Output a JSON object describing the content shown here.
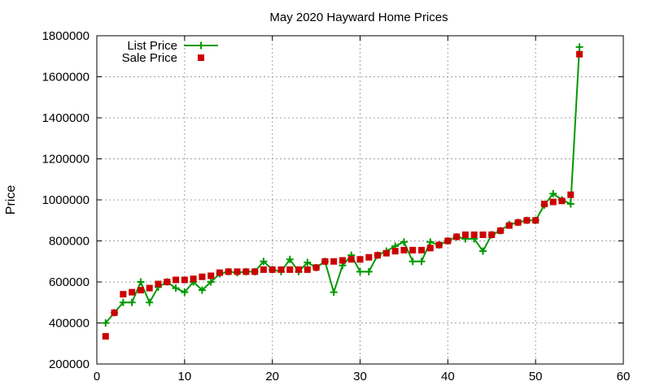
{
  "chart_data": {
    "type": "line",
    "title": "May 2020 Hayward Home Prices",
    "xlabel": "",
    "ylabel": "Price",
    "xlim": [
      0,
      60
    ],
    "ylim": [
      200000,
      1800000
    ],
    "x_ticks": [
      0,
      10,
      20,
      30,
      40,
      50,
      60
    ],
    "y_ticks": [
      200000,
      400000,
      600000,
      800000,
      1000000,
      1200000,
      1400000,
      1600000,
      1800000
    ],
    "grid": true,
    "legend_position": "top-left",
    "series": [
      {
        "name": "List Price",
        "style": "line-with-plus-markers",
        "color": "#009900",
        "x": [
          1,
          2,
          3,
          4,
          5,
          6,
          7,
          8,
          9,
          10,
          11,
          12,
          13,
          14,
          15,
          16,
          17,
          18,
          19,
          20,
          21,
          22,
          23,
          24,
          25,
          26,
          27,
          28,
          29,
          30,
          31,
          32,
          33,
          34,
          35,
          36,
          37,
          38,
          39,
          40,
          41,
          42,
          43,
          44,
          45,
          46,
          47,
          48,
          49,
          50,
          51,
          52,
          53,
          54,
          55
        ],
        "values": [
          400000,
          450000,
          500000,
          500000,
          600000,
          500000,
          575000,
          600000,
          570000,
          550000,
          600000,
          560000,
          600000,
          640000,
          650000,
          645000,
          650000,
          650000,
          700000,
          660000,
          650000,
          710000,
          650000,
          695000,
          670000,
          700000,
          550000,
          680000,
          730000,
          650000,
          650000,
          730000,
          750000,
          775000,
          795000,
          700000,
          700000,
          795000,
          780000,
          800000,
          820000,
          810000,
          810000,
          750000,
          830000,
          850000,
          880000,
          890000,
          900000,
          900000,
          975000,
          1030000,
          1000000,
          980000,
          1745000
        ]
      },
      {
        "name": "Sale Price",
        "style": "square-markers",
        "color": "#cc0000",
        "x": [
          1,
          2,
          3,
          4,
          5,
          6,
          7,
          8,
          9,
          10,
          11,
          12,
          13,
          14,
          15,
          16,
          17,
          18,
          19,
          20,
          21,
          22,
          23,
          24,
          25,
          26,
          27,
          28,
          29,
          30,
          31,
          32,
          33,
          34,
          35,
          36,
          37,
          38,
          39,
          40,
          41,
          42,
          43,
          44,
          45,
          46,
          47,
          48,
          49,
          50,
          51,
          52,
          53,
          54,
          55
        ],
        "values": [
          335000,
          450000,
          540000,
          550000,
          560000,
          570000,
          590000,
          600000,
          610000,
          610000,
          615000,
          625000,
          630000,
          645000,
          650000,
          650000,
          650000,
          650000,
          660000,
          660000,
          660000,
          660000,
          660000,
          660000,
          670000,
          700000,
          700000,
          705000,
          710000,
          710000,
          720000,
          730000,
          740000,
          750000,
          755000,
          755000,
          755000,
          765000,
          780000,
          800000,
          820000,
          830000,
          830000,
          830000,
          830000,
          850000,
          875000,
          890000,
          900000,
          900000,
          980000,
          990000,
          995000,
          1025000,
          1710000
        ]
      }
    ]
  }
}
